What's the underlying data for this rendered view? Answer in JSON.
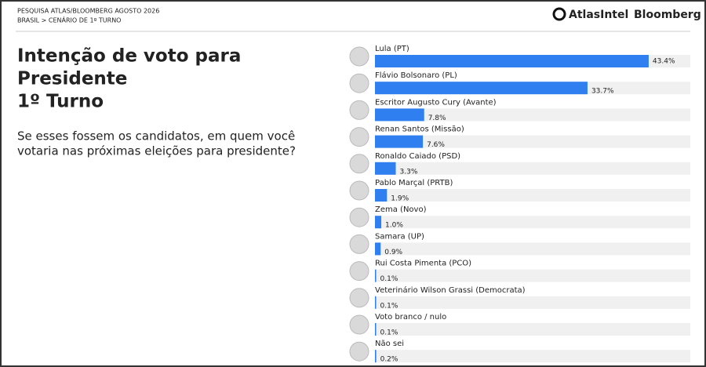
{
  "header": {
    "survey": "PESQUISA ATLAS/BLOOMBERG AGOSTO 2026",
    "breadcrumb": "BRASIL > CENÁRIO DE 1º TURNO",
    "logos": [
      "AtlasIntel",
      "Bloomberg"
    ]
  },
  "chart_data": {
    "type": "bar",
    "orientation": "horizontal",
    "title": [
      "Intenção de voto para",
      "Presidente",
      "1º Turno"
    ],
    "subtitle": [
      "Se esses fossem os candidatos, em quem você",
      "votaria nas próximas eleições para presidente?"
    ],
    "categories": [
      "Lula (PT)",
      "Flávio Bolsonaro (PL)",
      "Escritor Augusto Cury (Avante)",
      "Renan Santos (Missão)",
      "Ronaldo Caiado (PSD)",
      "Pablo Marçal (PRTB)",
      "Zema (Novo)",
      "Samara (UP)",
      "Rui Costa Pimenta (PCO)",
      "Veterinário Wilson Grassi (Democrata)",
      "Voto branco / nulo",
      "Não sei"
    ],
    "values": [
      43.4,
      33.7,
      7.8,
      7.6,
      3.3,
      1.9,
      1.0,
      0.9,
      0.1,
      0.1,
      0.1,
      0.2
    ],
    "value_labels": [
      "43.4%",
      "33.7%",
      "7.8%",
      "7.6%",
      "3.3%",
      "1.9%",
      "1.0%",
      "0.9%",
      "0.1%",
      "0.1%",
      "0.1%",
      "0.2%"
    ],
    "color": "#2f7ff0"
  }
}
